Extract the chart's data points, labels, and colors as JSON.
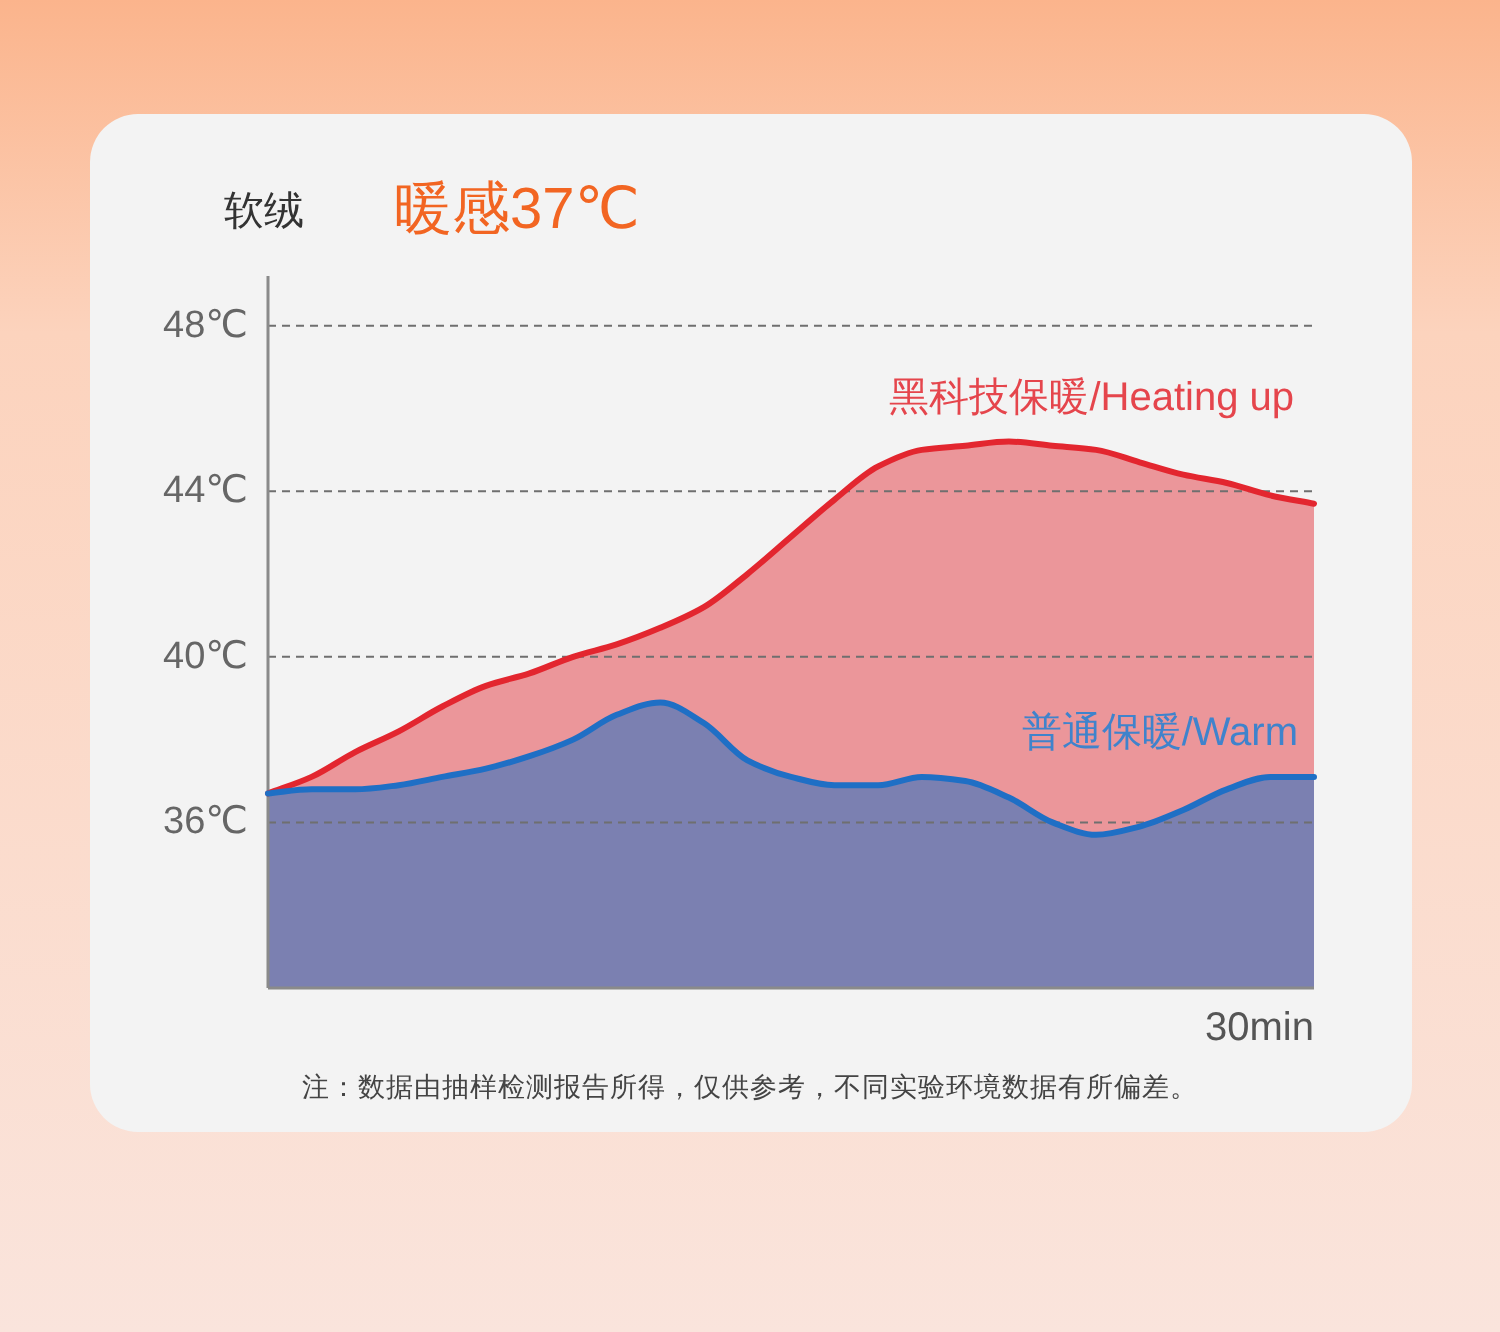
{
  "chart_data": {
    "type": "area",
    "title": "软绒",
    "subtitle": "暖感37℃",
    "xlabel": "30min",
    "categories": [
      null,
      null,
      null,
      null,
      null,
      null,
      null,
      null,
      null,
      null,
      null,
      null,
      null,
      null,
      null,
      null,
      null,
      null,
      null,
      null,
      null,
      null,
      null,
      null,
      null
    ],
    "series": [
      {
        "name": "黑科技保暖/Heating up",
        "color": "#e3262f",
        "values": [
          36.7,
          37.1,
          37.7,
          38.2,
          38.8,
          39.3,
          39.6,
          40.0,
          40.3,
          40.7,
          41.2,
          42.0,
          42.9,
          43.8,
          44.6,
          45.0,
          45.1,
          45.2,
          45.1,
          45.0,
          44.7,
          44.4,
          44.2,
          43.9,
          43.7
        ]
      },
      {
        "name": "普通保暖/Warm",
        "color": "#1f6fc5",
        "values": [
          36.7,
          36.8,
          36.8,
          36.9,
          37.1,
          37.3,
          37.6,
          38.0,
          38.6,
          38.9,
          38.4,
          37.5,
          37.1,
          36.9,
          36.9,
          37.1,
          37.0,
          36.6,
          36.0,
          35.7,
          35.9,
          36.3,
          36.8,
          37.1,
          37.1
        ]
      }
    ],
    "ylim": [
      32,
      49.2
    ],
    "yticks": [
      {
        "value": 36,
        "label": "36℃"
      },
      {
        "value": 40,
        "label": "40℃"
      },
      {
        "value": 44,
        "label": "44℃"
      },
      {
        "value": 48,
        "label": "48℃"
      }
    ],
    "grid": "y",
    "legend": false,
    "line_style": "solid",
    "annotations": [
      "注：数据由抽样检测报告所得，仅供参考，不同实验环境数据有所偏差。"
    ]
  }
}
